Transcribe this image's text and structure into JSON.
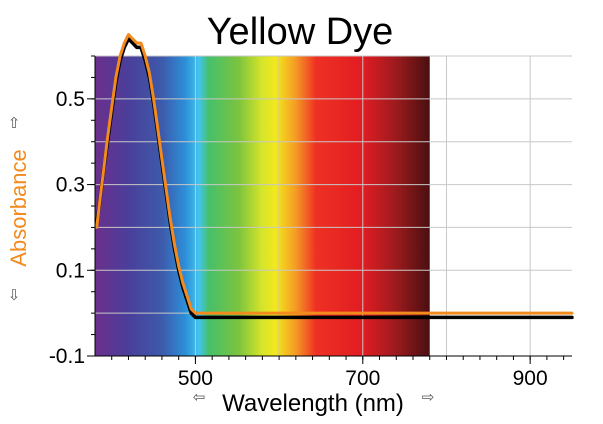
{
  "chart_data": {
    "type": "line",
    "title": "Yellow Dye",
    "xlabel": "Wavelength (nm)",
    "ylabel": "Absorbance",
    "xlim": [
      380,
      950
    ],
    "ylim": [
      -0.1,
      0.6
    ],
    "x_ticks": [
      500,
      700,
      900
    ],
    "x_tick_labels": [
      "500",
      "700",
      "900"
    ],
    "y_ticks": [
      -0.1,
      0.1,
      0.3,
      0.5
    ],
    "y_tick_labels": [
      "-0.1",
      "0.1",
      "0.3",
      "0.5"
    ],
    "grid": true,
    "legend": "none",
    "background": "visible spectrum gradient from about 380 to 780 nm",
    "series": [
      {
        "color": "#000000",
        "x": [
          382,
          385,
          390,
          395,
          400,
          405,
          410,
          415,
          420,
          425,
          430,
          435,
          440,
          445,
          450,
          455,
          460,
          465,
          470,
          475,
          480,
          485,
          490,
          495,
          500,
          520,
          600,
          700,
          800,
          900,
          950
        ],
        "y": [
          0.21,
          0.25,
          0.33,
          0.4,
          0.47,
          0.54,
          0.59,
          0.62,
          0.64,
          0.63,
          0.62,
          0.62,
          0.59,
          0.55,
          0.49,
          0.42,
          0.35,
          0.28,
          0.21,
          0.15,
          0.1,
          0.06,
          0.03,
          0.0,
          -0.01,
          -0.01,
          -0.01,
          -0.01,
          -0.01,
          -0.01,
          -0.01
        ]
      },
      {
        "color": "#f28a1e",
        "x": [
          382,
          385,
          390,
          395,
          400,
          405,
          410,
          415,
          420,
          425,
          430,
          435,
          440,
          445,
          450,
          455,
          460,
          465,
          470,
          475,
          480,
          485,
          490,
          495,
          500,
          520,
          600,
          700,
          800,
          900,
          950
        ],
        "y": [
          0.2,
          0.25,
          0.33,
          0.41,
          0.48,
          0.55,
          0.6,
          0.63,
          0.65,
          0.64,
          0.63,
          0.63,
          0.6,
          0.56,
          0.5,
          0.43,
          0.36,
          0.29,
          0.22,
          0.16,
          0.11,
          0.07,
          0.04,
          0.01,
          0.0,
          0.0,
          0.0,
          0.0,
          0.0,
          0.0,
          0.0
        ]
      }
    ],
    "title_color": "#000000",
    "ylabel_color": "#f28a1e",
    "xlabel_color": "#000000"
  },
  "decorations": {
    "up_arrow": "⇧",
    "down_arrow": "⇩",
    "left_arrow": "⇦",
    "right_arrow": "⇨"
  }
}
